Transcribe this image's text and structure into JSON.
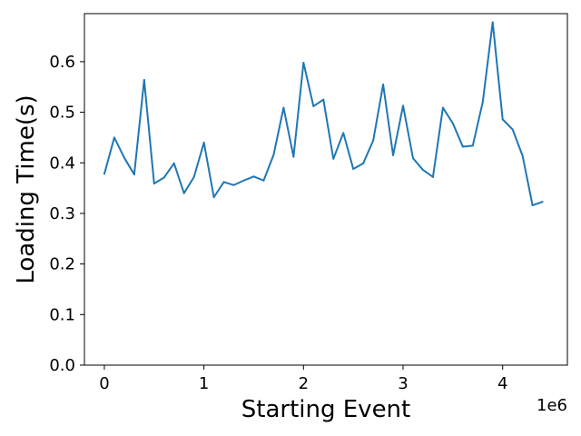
{
  "chart_data": {
    "type": "line",
    "title": "",
    "xlabel": "Starting Event",
    "ylabel": "Loading Time(s)",
    "x_offset_label": "1e6",
    "xlim": [
      -200000,
      4650000
    ],
    "ylim": [
      0.0,
      0.695
    ],
    "x_ticks": [
      0,
      1000000,
      2000000,
      3000000,
      4000000
    ],
    "x_tick_labels": [
      "0",
      "1",
      "2",
      "3",
      "4"
    ],
    "y_ticks": [
      0.0,
      0.1,
      0.2,
      0.3,
      0.4,
      0.5,
      0.6
    ],
    "y_tick_labels": [
      "0.0",
      "0.1",
      "0.2",
      "0.3",
      "0.4",
      "0.5",
      "0.6"
    ],
    "grid": false,
    "legend": "none",
    "line_color": "#1f77b4",
    "series": [
      {
        "x": [
          0,
          100000,
          200000,
          300000,
          400000,
          500000,
          600000,
          700000,
          800000,
          900000,
          1000000,
          1100000,
          1200000,
          1300000,
          1400000,
          1500000,
          1600000,
          1700000,
          1800000,
          1900000,
          2000000,
          2100000,
          2200000,
          2300000,
          2400000,
          2500000,
          2600000,
          2700000,
          2800000,
          2900000,
          3000000,
          3100000,
          3200000,
          3300000,
          3400000,
          3500000,
          3600000,
          3700000,
          3800000,
          3900000,
          4000000,
          4100000,
          4200000,
          4300000,
          4400000
        ],
        "y": [
          0.378,
          0.45,
          0.41,
          0.377,
          0.564,
          0.359,
          0.371,
          0.399,
          0.34,
          0.372,
          0.44,
          0.332,
          0.362,
          0.356,
          0.365,
          0.373,
          0.365,
          0.416,
          0.509,
          0.412,
          0.598,
          0.512,
          0.525,
          0.408,
          0.459,
          0.388,
          0.399,
          0.444,
          0.555,
          0.415,
          0.513,
          0.409,
          0.386,
          0.372,
          0.509,
          0.478,
          0.432,
          0.434,
          0.52,
          0.678,
          0.486,
          0.466,
          0.414,
          0.316,
          0.323
        ]
      }
    ]
  }
}
